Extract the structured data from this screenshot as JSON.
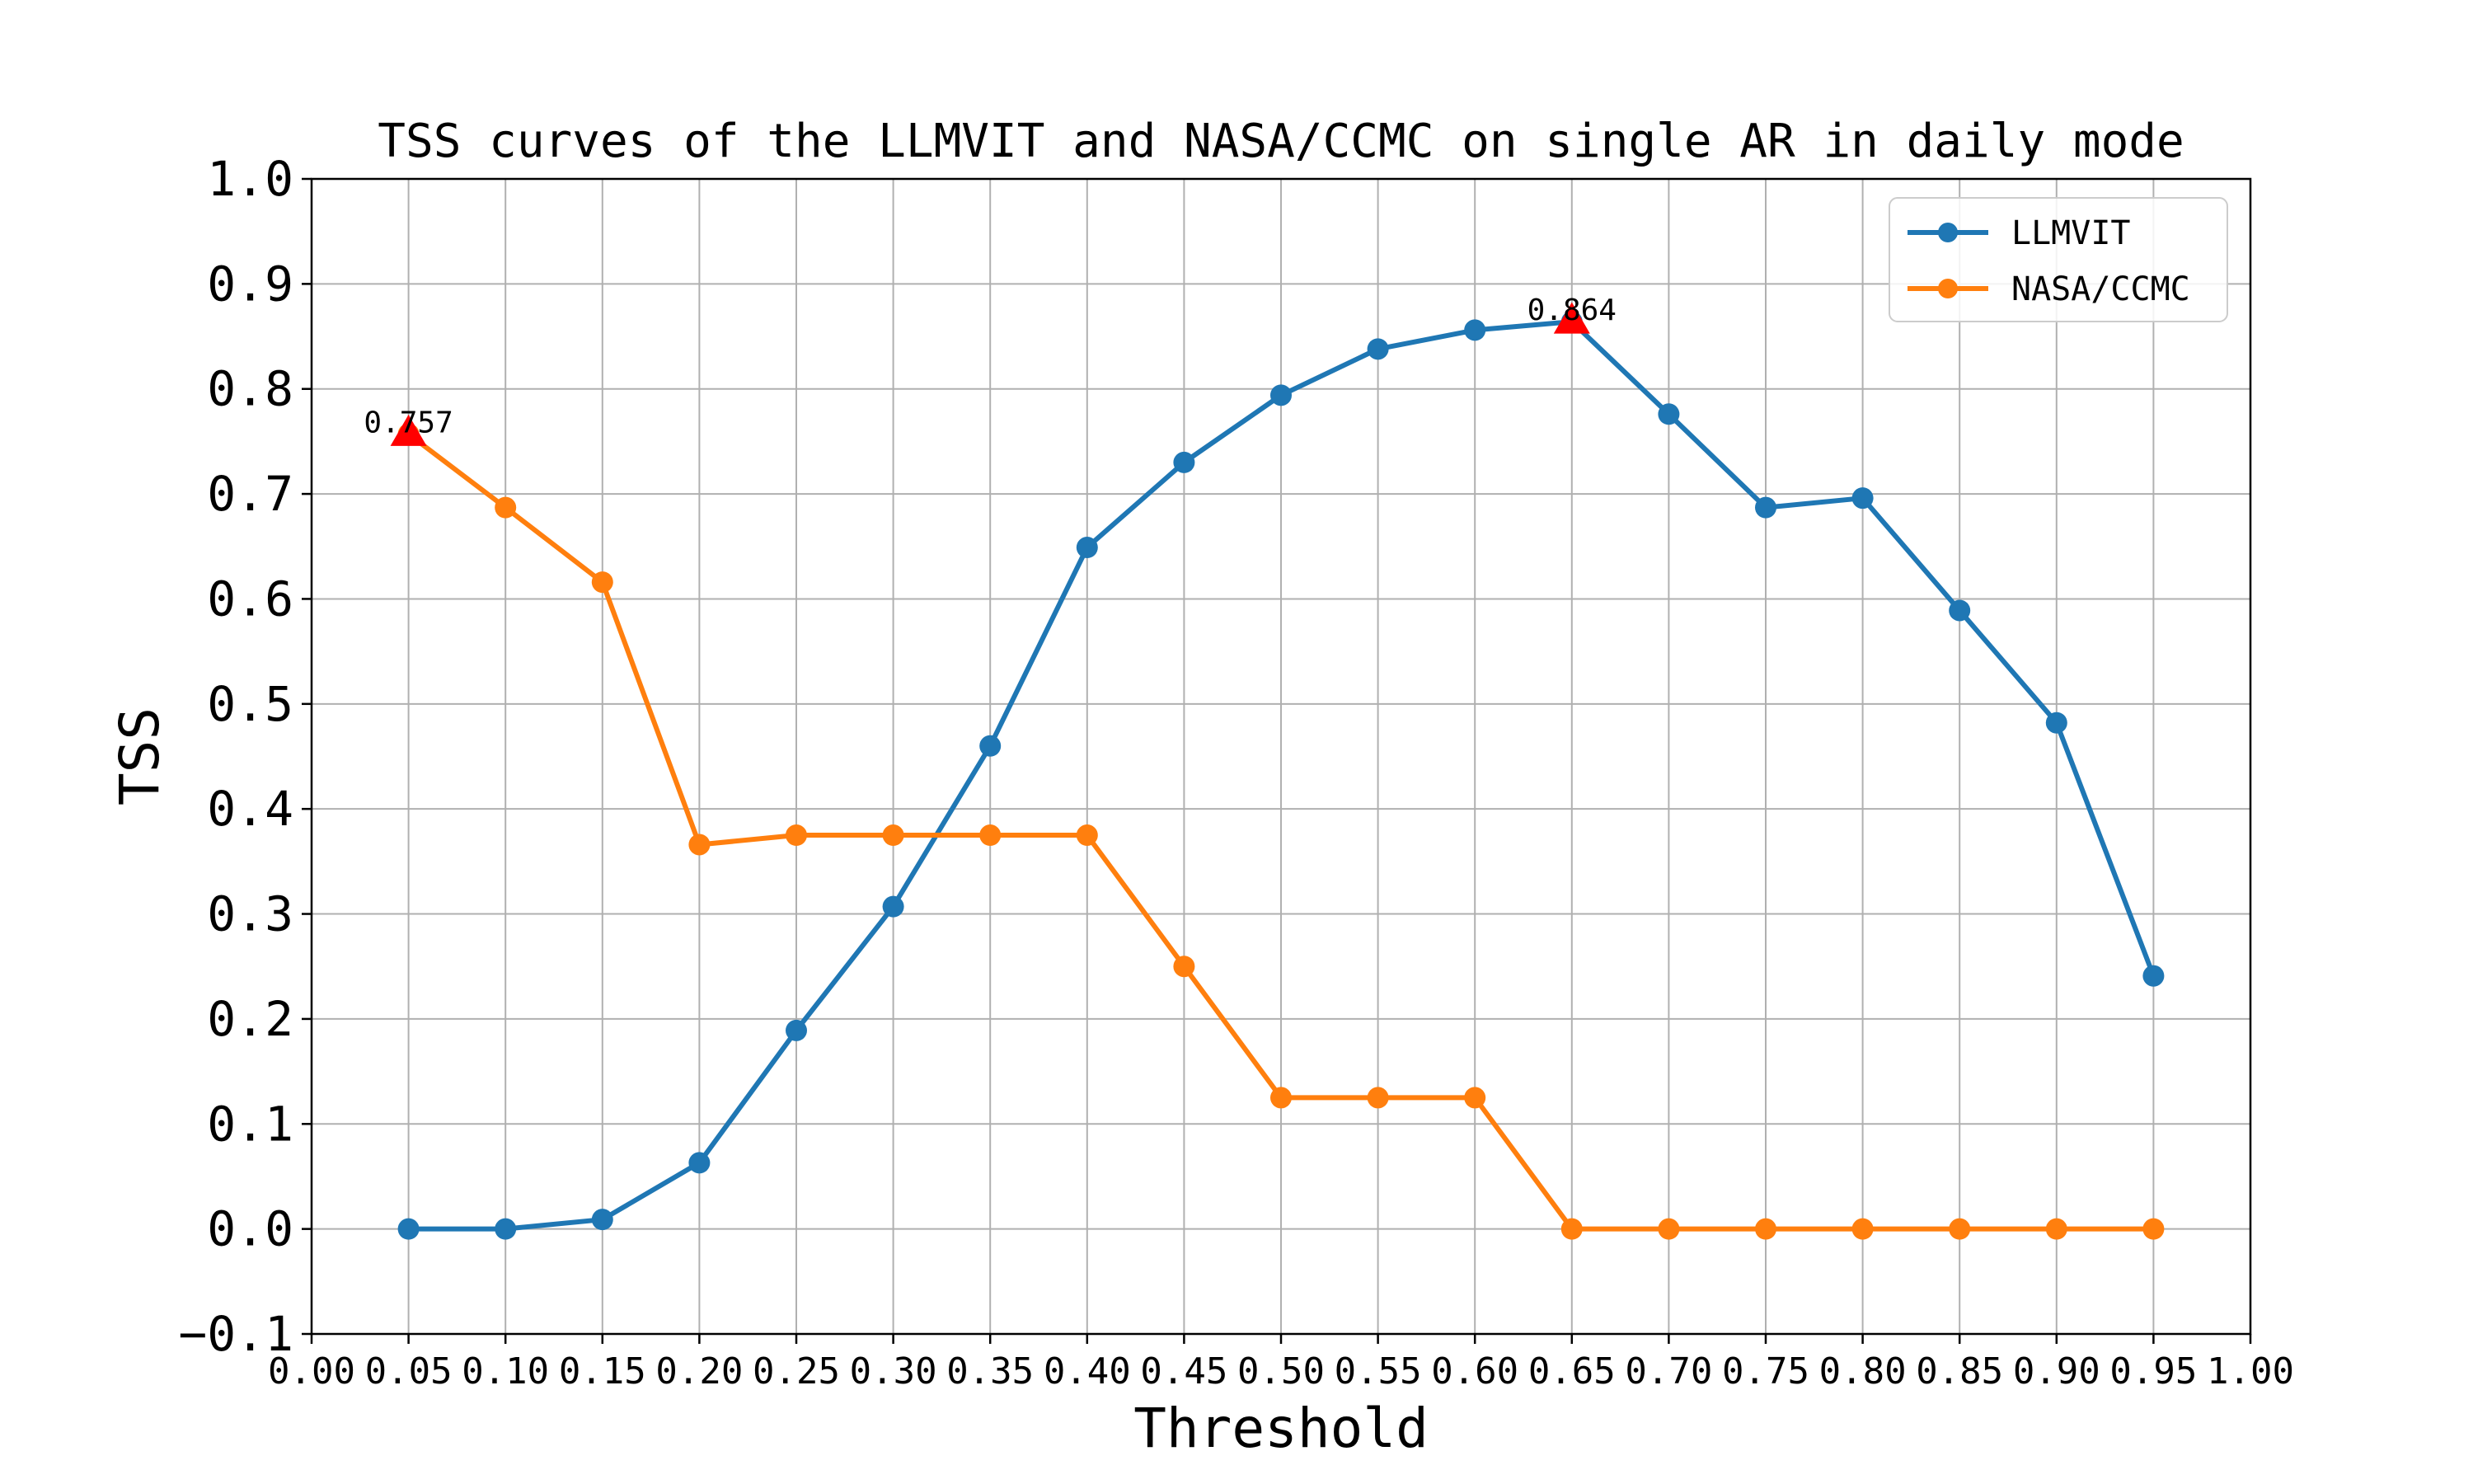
{
  "chart_data": {
    "type": "line",
    "title": "TSS curves of the LLMVIT and NASA/CCMC on single AR in daily mode",
    "xlabel": "Threshold",
    "ylabel": "TSS",
    "xlim": [
      0.0,
      1.0
    ],
    "ylim": [
      -0.1,
      1.0
    ],
    "xticks": [
      "0.00",
      "0.05",
      "0.10",
      "0.15",
      "0.20",
      "0.25",
      "0.30",
      "0.35",
      "0.40",
      "0.45",
      "0.50",
      "0.55",
      "0.60",
      "0.65",
      "0.70",
      "0.75",
      "0.80",
      "0.85",
      "0.90",
      "0.95",
      "1.00"
    ],
    "yticks": [
      "−0.1",
      "0.0",
      "0.1",
      "0.2",
      "0.3",
      "0.4",
      "0.5",
      "0.6",
      "0.7",
      "0.8",
      "0.9",
      "1.0"
    ],
    "grid": true,
    "legend_position": "top-right",
    "x": [
      0.05,
      0.1,
      0.15,
      0.2,
      0.25,
      0.3,
      0.35,
      0.4,
      0.45,
      0.5,
      0.55,
      0.6,
      0.65,
      0.7,
      0.75,
      0.8,
      0.85,
      0.9,
      0.95
    ],
    "series": [
      {
        "name": "LLMVIT",
        "color": "#1f77b4",
        "values": [
          0.0,
          0.0,
          0.009,
          0.063,
          0.189,
          0.307,
          0.46,
          0.649,
          0.73,
          0.794,
          0.838,
          0.856,
          0.864,
          0.776,
          0.687,
          0.696,
          0.589,
          0.482,
          0.241
        ]
      },
      {
        "name": "NASA/CCMC",
        "color": "#ff7f0e",
        "values": [
          0.757,
          0.687,
          0.616,
          0.366,
          0.375,
          0.375,
          0.375,
          0.375,
          0.25,
          0.125,
          0.125,
          0.125,
          0.0,
          0.0,
          0.0,
          0.0,
          0.0,
          0.0,
          0.0
        ]
      }
    ],
    "annotations": [
      {
        "text": "0.757",
        "x": 0.05,
        "y": 0.757,
        "marker": "triangle",
        "color": "#ff0000"
      },
      {
        "text": "0.864",
        "x": 0.65,
        "y": 0.864,
        "marker": "triangle",
        "color": "#ff0000"
      }
    ]
  }
}
